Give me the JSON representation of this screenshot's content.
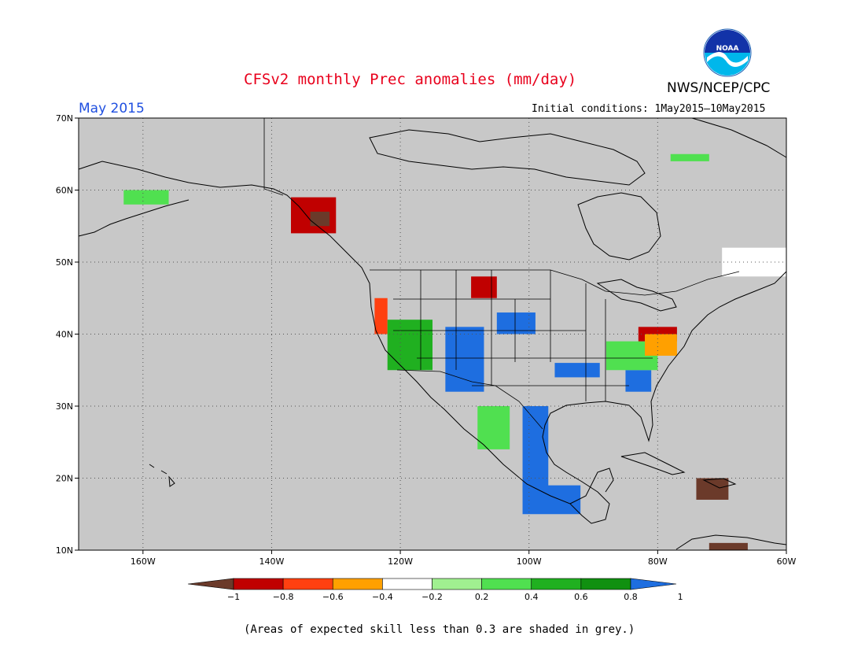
{
  "header": {
    "title": "CFSv2 monthly Prec anomalies (mm/day)",
    "agency": "NWS/NCEP/CPC",
    "logo_text": "NOAA",
    "month": "May 2015",
    "initial_conditions": "Initial conditions: 1May2015–10May2015"
  },
  "footnote": "(Areas of expected skill less than 0.3 are shaded in grey.)",
  "map": {
    "lon_range": [
      -170,
      -60
    ],
    "lat_range": [
      10,
      70
    ],
    "lon_ticks": [
      {
        "value": -160,
        "label": "160W"
      },
      {
        "value": -140,
        "label": "140W"
      },
      {
        "value": -120,
        "label": "120W"
      },
      {
        "value": -100,
        "label": "100W"
      },
      {
        "value": -80,
        "label": "80W"
      },
      {
        "value": -60,
        "label": "60W"
      }
    ],
    "lat_ticks": [
      {
        "value": 10,
        "label": "10N"
      },
      {
        "value": 20,
        "label": "20N"
      },
      {
        "value": 30,
        "label": "30N"
      },
      {
        "value": 40,
        "label": "40N"
      },
      {
        "value": 50,
        "label": "50N"
      },
      {
        "value": 60,
        "label": "60N"
      },
      {
        "value": 70,
        "label": "70N"
      }
    ],
    "grid": "dotted",
    "colors": {
      "ocean_grey": "#c8c8c8",
      "coast": "#000000"
    }
  },
  "colorbar": {
    "labels": [
      "−1",
      "−0.8",
      "−0.6",
      "−0.4",
      "−0.2",
      "0.2",
      "0.4",
      "0.6",
      "0.8",
      "1"
    ],
    "bins": [
      {
        "color": "#6b3a2a"
      },
      {
        "color": "#c00000"
      },
      {
        "color": "#ff4010"
      },
      {
        "color": "#ffa000"
      },
      {
        "color": "#ffffff"
      },
      {
        "color": "#a0f090"
      },
      {
        "color": "#50e050"
      },
      {
        "color": "#20b020"
      },
      {
        "color": "#109010"
      },
      {
        "color": "#1e6ee0"
      }
    ]
  },
  "anomaly_regions": [
    {
      "name": "southeast-alaska-panhandle",
      "color": "#c00000",
      "lon": [
        -137,
        -130
      ],
      "lat": [
        54,
        59
      ]
    },
    {
      "name": "alaska-panhandle-core",
      "color": "#6b3a2a",
      "lon": [
        -134,
        -131
      ],
      "lat": [
        55,
        57
      ]
    },
    {
      "name": "western-alaska",
      "color": "#50e050",
      "lon": [
        -163,
        -156
      ],
      "lat": [
        58,
        60
      ]
    },
    {
      "name": "pacific-northwest-coast",
      "color": "#ff4010",
      "lon": [
        -124,
        -122
      ],
      "lat": [
        40,
        45
      ]
    },
    {
      "name": "great-basin",
      "color": "#20b020",
      "lon": [
        -122,
        -115
      ],
      "lat": [
        35,
        42
      ]
    },
    {
      "name": "southern-rockies",
      "color": "#1e6ee0",
      "lon": [
        -113,
        -107
      ],
      "lat": [
        32,
        41
      ]
    },
    {
      "name": "central-plains",
      "color": "#1e6ee0",
      "lon": [
        -105,
        -99
      ],
      "lat": [
        40,
        43
      ]
    },
    {
      "name": "mexico-east",
      "color": "#1e6ee0",
      "lon": [
        -101,
        -97
      ],
      "lat": [
        18,
        30
      ]
    },
    {
      "name": "southern-mexico",
      "color": "#1e6ee0",
      "lon": [
        -101,
        -92
      ],
      "lat": [
        15,
        19
      ]
    },
    {
      "name": "mexico-west",
      "color": "#50e050",
      "lon": [
        -108,
        -103
      ],
      "lat": [
        24,
        30
      ]
    },
    {
      "name": "tennessee-valley",
      "color": "#1e6ee0",
      "lon": [
        -96,
        -89
      ],
      "lat": [
        34,
        36
      ]
    },
    {
      "name": "southeast-us",
      "color": "#1e6ee0",
      "lon": [
        -85,
        -81
      ],
      "lat": [
        32,
        35
      ]
    },
    {
      "name": "ohio-valley",
      "color": "#50e050",
      "lon": [
        -88,
        -80
      ],
      "lat": [
        35,
        39
      ]
    },
    {
      "name": "mid-atlantic",
      "color": "#c00000",
      "lon": [
        -83,
        -77
      ],
      "lat": [
        39,
        41
      ]
    },
    {
      "name": "new-england",
      "color": "#ffa000",
      "lon": [
        -82,
        -77
      ],
      "lat": [
        37,
        40
      ]
    },
    {
      "name": "montana",
      "color": "#c00000",
      "lon": [
        -109,
        -105
      ],
      "lat": [
        45,
        48
      ]
    },
    {
      "name": "caribbean-hispaniola",
      "color": "#6b3a2a",
      "lon": [
        -74,
        -69
      ],
      "lat": [
        17,
        20
      ]
    },
    {
      "name": "venezuela-coast",
      "color": "#6b3a2a",
      "lon": [
        -72,
        -66
      ],
      "lat": [
        10,
        11
      ]
    },
    {
      "name": "northern-quebec",
      "color": "#ffffff",
      "lon": [
        -70,
        -60
      ],
      "lat": [
        48,
        52
      ]
    },
    {
      "name": "labrador",
      "color": "#50e050",
      "lon": [
        -78,
        -72
      ],
      "lat": [
        64,
        65
      ]
    }
  ]
}
